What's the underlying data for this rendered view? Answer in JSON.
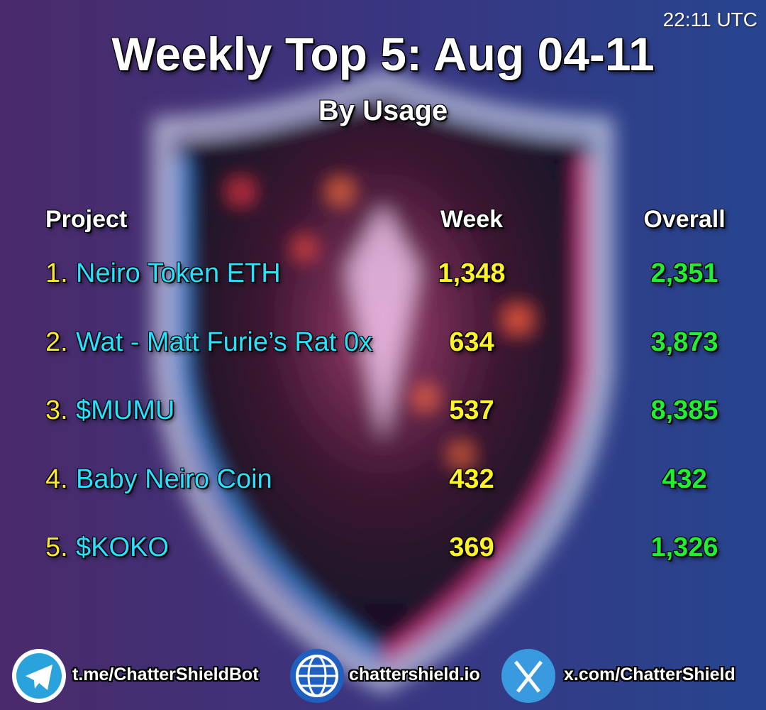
{
  "header": {
    "time": "22:11 UTC",
    "title": "Weekly Top 5: Aug 04-11",
    "subtitle": "By Usage"
  },
  "table": {
    "columns": [
      "Project",
      "Week",
      "Overall"
    ],
    "rows": [
      [
        "1.",
        "Neiro Token ETH",
        "1,348",
        "2,351"
      ],
      [
        "2.",
        "Wat - Matt Furie’s Rat 0x",
        "634",
        "3,873"
      ],
      [
        "3.",
        "$MUMU",
        "537",
        "8,385"
      ],
      [
        "4.",
        "Baby Neiro Coin",
        "432",
        "432"
      ],
      [
        "5.",
        "$KOKO",
        "369",
        "1,326"
      ]
    ]
  },
  "footer": {
    "links": [
      "t.me/ChatterShieldBot",
      "chattershield.io",
      "x.com/ChatterShield"
    ]
  }
}
